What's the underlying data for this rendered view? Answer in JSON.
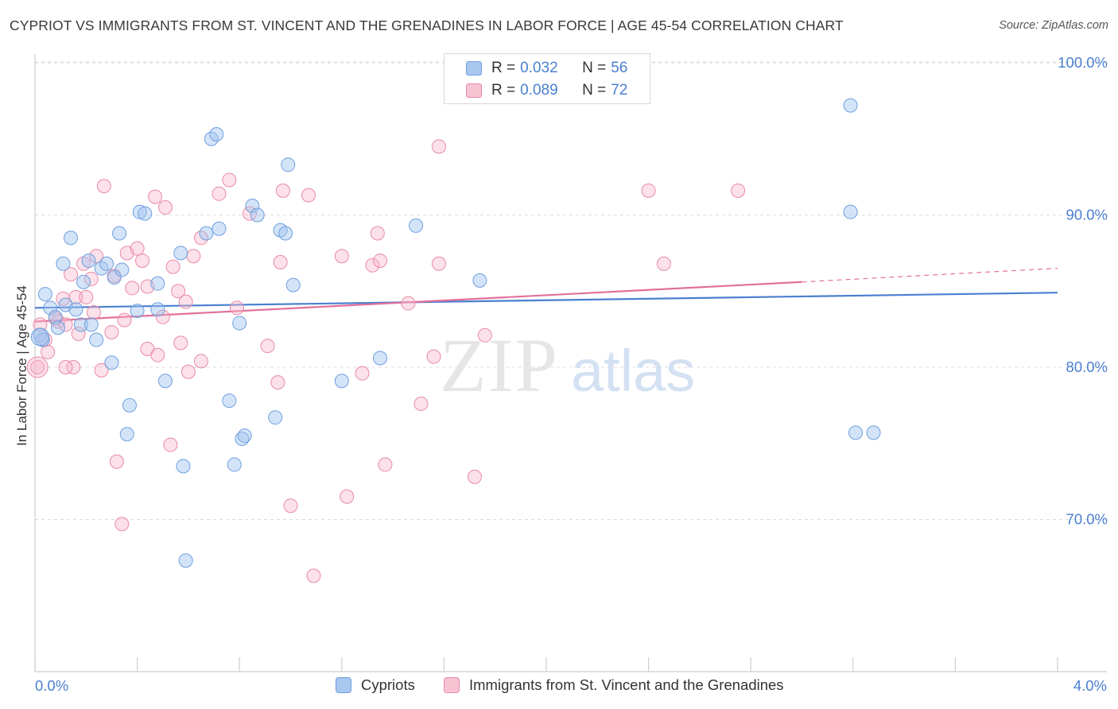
{
  "title": "CYPRIOT VS IMMIGRANTS FROM ST. VINCENT AND THE GRENADINES IN LABOR FORCE | AGE 45-54 CORRELATION CHART",
  "source": "Source: ZipAtlas.com",
  "watermark": {
    "zip": "ZIP",
    "atlas": "atlas"
  },
  "legend_top": [
    {
      "r_label": "R =",
      "r_value": "0.032",
      "n_label": "N =",
      "n_value": "56",
      "color": "#a9c8f0",
      "border": "#6f9fde"
    },
    {
      "r_label": "R =",
      "r_value": "0.089",
      "n_label": "N =",
      "n_value": "72",
      "color": "#f7c3d3",
      "border": "#e88aa6"
    }
  ],
  "legend_bottom": [
    {
      "label": "Cypriots",
      "color": "#a9c8f0",
      "border": "#6f9fde"
    },
    {
      "label": "Immigrants from St. Vincent and the Grenadines",
      "color": "#f7c3d3",
      "border": "#e88aa6"
    }
  ],
  "colors": {
    "blue": "#4a7fd0",
    "blue_fill": "rgba(160,195,240,0.45)",
    "blue_stroke": "#6f9fde",
    "pink": "#e2709a",
    "pink_fill": "rgba(247,180,202,0.40)",
    "pink_stroke": "#e88aa6",
    "grid": "#dcdcdc",
    "tick_text": "#4a7fd0"
  },
  "chart_data": {
    "type": "scatter",
    "xlabel": "",
    "ylabel": "In Labor Force | Age 45-54",
    "xlim": [
      0,
      4.2
    ],
    "ylim": [
      60,
      102
    ],
    "x_tick_labels": [
      {
        "x": 0,
        "label": "0.0%"
      },
      {
        "x": 4,
        "label": "4.0%"
      }
    ],
    "y_ticks": [
      {
        "y": 70,
        "label": "70.0%"
      },
      {
        "y": 80,
        "label": "80.0%"
      },
      {
        "y": 90,
        "label": "90.0%"
      },
      {
        "y": 100,
        "label": "100.0%"
      }
    ],
    "x_minor_ticks": [
      0,
      0.4,
      0.8,
      1.2,
      1.6,
      2.0,
      2.4,
      2.8,
      3.2,
      3.6,
      4.0
    ],
    "grid": true,
    "series": [
      {
        "name": "Cypriots",
        "trend": {
          "x0": 0,
          "y0": 83.9,
          "x1": 4.0,
          "y1": 84.9
        },
        "points": [
          [
            0.02,
            82.1
          ],
          [
            0.03,
            81.8
          ],
          [
            0.04,
            84.8
          ],
          [
            0.06,
            83.9
          ],
          [
            0.08,
            83.3
          ],
          [
            0.09,
            82.6
          ],
          [
            0.12,
            84.1
          ],
          [
            0.14,
            88.5
          ],
          [
            0.11,
            86.8
          ],
          [
            0.16,
            83.8
          ],
          [
            0.18,
            82.8
          ],
          [
            0.19,
            85.6
          ],
          [
            0.21,
            87.0
          ],
          [
            0.22,
            82.8
          ],
          [
            0.24,
            81.8
          ],
          [
            0.26,
            86.5
          ],
          [
            0.28,
            86.8
          ],
          [
            0.3,
            80.3
          ],
          [
            0.31,
            85.9
          ],
          [
            0.33,
            88.8
          ],
          [
            0.34,
            86.4
          ],
          [
            0.36,
            75.6
          ],
          [
            0.37,
            77.5
          ],
          [
            0.4,
            83.7
          ],
          [
            0.41,
            90.2
          ],
          [
            0.43,
            90.1
          ],
          [
            0.48,
            85.5
          ],
          [
            0.48,
            83.8
          ],
          [
            0.51,
            79.1
          ],
          [
            0.57,
            87.5
          ],
          [
            0.58,
            73.5
          ],
          [
            0.59,
            67.3
          ],
          [
            0.67,
            88.8
          ],
          [
            0.69,
            95.0
          ],
          [
            0.71,
            95.3
          ],
          [
            0.72,
            89.1
          ],
          [
            0.76,
            77.8
          ],
          [
            0.78,
            73.6
          ],
          [
            0.8,
            82.9
          ],
          [
            0.81,
            75.3
          ],
          [
            0.82,
            75.5
          ],
          [
            0.85,
            90.6
          ],
          [
            0.87,
            90.0
          ],
          [
            0.94,
            76.7
          ],
          [
            0.96,
            89.0
          ],
          [
            0.98,
            88.8
          ],
          [
            0.99,
            93.3
          ],
          [
            1.01,
            85.4
          ],
          [
            1.2,
            79.1
          ],
          [
            1.35,
            80.6
          ],
          [
            1.49,
            89.3
          ],
          [
            1.74,
            85.7
          ],
          [
            3.19,
            90.2
          ],
          [
            3.19,
            97.2
          ],
          [
            3.21,
            75.7
          ],
          [
            3.28,
            75.7
          ]
        ]
      },
      {
        "name": "Immigrants from St. Vincent and the Grenadines",
        "trend": {
          "x0": 0,
          "y0": 83.0,
          "x1": 3.0,
          "y1": 85.6,
          "dash_x1": 4.0,
          "dash_y1": 86.5
        },
        "points": [
          [
            0.01,
            80.0
          ],
          [
            0.02,
            82.8
          ],
          [
            0.04,
            81.8
          ],
          [
            0.05,
            81.0
          ],
          [
            0.08,
            83.2
          ],
          [
            0.09,
            83.0
          ],
          [
            0.11,
            84.5
          ],
          [
            0.12,
            82.8
          ],
          [
            0.14,
            86.1
          ],
          [
            0.15,
            80.0
          ],
          [
            0.16,
            84.6
          ],
          [
            0.17,
            82.2
          ],
          [
            0.19,
            86.8
          ],
          [
            0.2,
            84.6
          ],
          [
            0.22,
            85.8
          ],
          [
            0.23,
            83.6
          ],
          [
            0.24,
            87.3
          ],
          [
            0.26,
            79.8
          ],
          [
            0.27,
            91.9
          ],
          [
            0.3,
            82.3
          ],
          [
            0.31,
            86.0
          ],
          [
            0.32,
            73.8
          ],
          [
            0.34,
            69.7
          ],
          [
            0.35,
            83.1
          ],
          [
            0.36,
            87.5
          ],
          [
            0.38,
            85.2
          ],
          [
            0.4,
            87.8
          ],
          [
            0.42,
            87.0
          ],
          [
            0.44,
            81.2
          ],
          [
            0.44,
            85.3
          ],
          [
            0.47,
            91.2
          ],
          [
            0.48,
            80.8
          ],
          [
            0.5,
            83.3
          ],
          [
            0.51,
            90.5
          ],
          [
            0.53,
            74.9
          ],
          [
            0.54,
            86.6
          ],
          [
            0.56,
            85.0
          ],
          [
            0.57,
            81.6
          ],
          [
            0.59,
            84.3
          ],
          [
            0.6,
            79.7
          ],
          [
            0.62,
            87.3
          ],
          [
            0.65,
            80.4
          ],
          [
            0.65,
            88.5
          ],
          [
            0.72,
            91.4
          ],
          [
            0.76,
            92.3
          ],
          [
            0.79,
            83.9
          ],
          [
            0.84,
            90.1
          ],
          [
            0.91,
            81.4
          ],
          [
            0.95,
            79.0
          ],
          [
            0.96,
            86.9
          ],
          [
            0.97,
            91.6
          ],
          [
            1.0,
            70.9
          ],
          [
            1.07,
            91.3
          ],
          [
            1.09,
            66.3
          ],
          [
            1.2,
            87.3
          ],
          [
            1.22,
            71.5
          ],
          [
            1.28,
            79.6
          ],
          [
            1.32,
            86.7
          ],
          [
            1.34,
            88.8
          ],
          [
            1.35,
            87.0
          ],
          [
            1.37,
            73.6
          ],
          [
            1.46,
            84.2
          ],
          [
            1.51,
            77.6
          ],
          [
            1.56,
            80.7
          ],
          [
            1.58,
            94.5
          ],
          [
            1.58,
            86.8
          ],
          [
            1.72,
            72.8
          ],
          [
            1.76,
            82.1
          ],
          [
            2.4,
            91.6
          ],
          [
            2.46,
            86.8
          ],
          [
            2.75,
            91.6
          ],
          [
            0.12,
            80.0
          ]
        ]
      }
    ]
  }
}
